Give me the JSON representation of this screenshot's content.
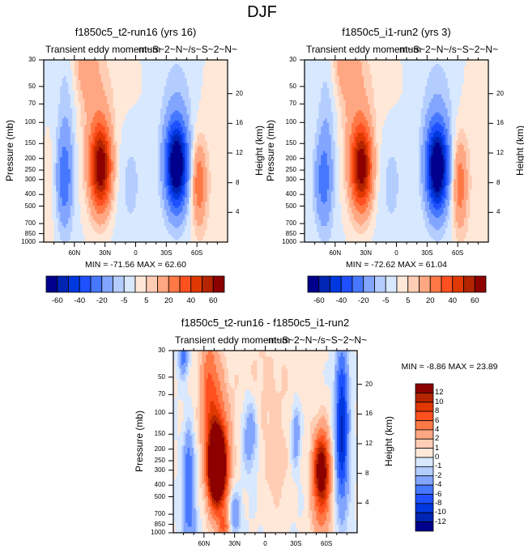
{
  "figure_title": "DJF",
  "colors": {
    "colormap": [
      "#00008c",
      "#0024b4",
      "#0038e0",
      "#1e50ff",
      "#4678ff",
      "#82a5ff",
      "#b4cdff",
      "#d7e8ff",
      "#ffe8d8",
      "#ffcdb4",
      "#ffa682",
      "#ff7846",
      "#ff5020",
      "#e03800",
      "#b42400",
      "#8c0000"
    ]
  },
  "chart_data": [
    {
      "type": "heatmap",
      "subtype": "filled-contour",
      "title": "f1850c5_t2-run16 (yrs 16)",
      "left_string": "Transient eddy momentum",
      "right_string": "m~S~2~N~/s~S~2~N~",
      "xlabel": "",
      "ylabel": "Pressure (mb)",
      "right_axis_label": "Height (km)",
      "x_ticks": [
        "60N",
        "30N",
        "0",
        "30S",
        "60S"
      ],
      "x_range": [
        90,
        -90
      ],
      "y_ticks": [
        "30",
        "50",
        "70",
        "100",
        "150",
        "200",
        "250",
        "300",
        "400",
        "500",
        "700",
        "850",
        "1000"
      ],
      "y_range_mb": [
        1000,
        30
      ],
      "right_ticks": [
        "20",
        "16",
        "12",
        "8",
        "4"
      ],
      "min": -71.56,
      "max": 62.6,
      "min_label": "MIN = -71.56  MAX =  62.60",
      "colorbar": {
        "orientation": "horizontal",
        "levels": [
          -70,
          -60,
          -50,
          -40,
          -30,
          -20,
          -10,
          -5,
          0,
          5,
          10,
          20,
          30,
          40,
          50,
          60,
          70
        ],
        "labels": [
          "-60",
          "-40",
          "-20",
          "-5",
          "5",
          "20",
          "40",
          "60"
        ]
      },
      "features": [
        {
          "name": "positive max NH subtropics",
          "lat": "~35N",
          "p_mb": 250,
          "value": 62.6
        },
        {
          "name": "negative min SH midlatitudes",
          "lat": "~40S",
          "p_mb": 250,
          "value": -71.56
        },
        {
          "name": "negative lobe NH high latitudes",
          "lat": "~70N",
          "p_mb": 300,
          "value": -20
        },
        {
          "name": "positive lobe SH high latitudes",
          "lat": "~60S",
          "p_mb": 300,
          "value": 20
        }
      ]
    },
    {
      "type": "heatmap",
      "subtype": "filled-contour",
      "title": "f1850c5_i1-run2 (yrs 3)",
      "left_string": "Transient eddy momentum",
      "right_string": "m~S~2~N~/s~S~2~N~",
      "xlabel": "",
      "ylabel": "Pressure (mb)",
      "right_axis_label": "Height (km)",
      "x_ticks": [
        "60N",
        "30N",
        "0",
        "30S",
        "60S"
      ],
      "x_range": [
        90,
        -90
      ],
      "y_ticks": [
        "30",
        "50",
        "70",
        "100",
        "150",
        "200",
        "250",
        "300",
        "400",
        "500",
        "700",
        "850",
        "1000"
      ],
      "y_range_mb": [
        1000,
        30
      ],
      "right_ticks": [
        "20",
        "16",
        "12",
        "8",
        "4"
      ],
      "min": -72.62,
      "max": 61.04,
      "min_label": "MIN = -72.62  MAX =  61.04",
      "colorbar": {
        "orientation": "horizontal",
        "levels": [
          -70,
          -60,
          -50,
          -40,
          -30,
          -20,
          -10,
          -5,
          0,
          5,
          10,
          20,
          30,
          40,
          50,
          60,
          70
        ],
        "labels": [
          "-60",
          "-40",
          "-20",
          "-5",
          "5",
          "20",
          "40",
          "60"
        ]
      },
      "features": [
        {
          "name": "positive max NH subtropics",
          "lat": "~35N",
          "p_mb": 250,
          "value": 61.04
        },
        {
          "name": "negative min SH midlatitudes",
          "lat": "~40S",
          "p_mb": 250,
          "value": -72.62
        },
        {
          "name": "negative lobe NH high latitudes",
          "lat": "~70N",
          "p_mb": 300,
          "value": -20
        },
        {
          "name": "positive lobe SH high latitudes",
          "lat": "~60S",
          "p_mb": 300,
          "value": 20
        }
      ]
    },
    {
      "type": "heatmap",
      "subtype": "filled-contour",
      "title": "f1850c5_t2-run16 - f1850c5_i1-run2",
      "left_string": "Transient eddy momentum",
      "right_string": "m~S~2~N~/s~S~2~N~",
      "xlabel": "",
      "ylabel": "Pressure (mb)",
      "right_axis_label": "Height (km)",
      "x_ticks": [
        "60N",
        "30N",
        "0",
        "30S",
        "60S"
      ],
      "x_range": [
        90,
        -90
      ],
      "y_ticks": [
        "30",
        "50",
        "70",
        "100",
        "150",
        "200",
        "250",
        "300",
        "400",
        "500",
        "700",
        "850",
        "1000"
      ],
      "y_range_mb": [
        1000,
        30
      ],
      "right_ticks": [
        "20",
        "16",
        "12",
        "8",
        "4"
      ],
      "min": -8.86,
      "max": 23.89,
      "min_label": "MIN =  -8.86  MAX =  23.89",
      "colorbar": {
        "orientation": "vertical",
        "levels": [
          -14,
          -12,
          -10,
          -8,
          -6,
          -4,
          -2,
          -1,
          0,
          1,
          2,
          4,
          6,
          8,
          10,
          12,
          14
        ],
        "labels": [
          "12",
          "10",
          "8",
          "6",
          "4",
          "2",
          "1",
          "0",
          "-1",
          "-2",
          "-4",
          "-6",
          "-8",
          "-10",
          "-12"
        ]
      },
      "features": [
        {
          "name": "positive max NH midlatitudes",
          "lat": "~45N",
          "p_mb": 300,
          "value": 23.89
        },
        {
          "name": "positive lobe SH midlatitudes",
          "lat": "~55S",
          "p_mb": 300,
          "value": 12
        },
        {
          "name": "negative lobe SH high latitudes",
          "lat": "~75S",
          "p_mb": 150,
          "value": -8
        },
        {
          "name": "negative lobe NH high latitudes",
          "lat": "~75N",
          "p_mb": 300,
          "value": -8
        }
      ]
    }
  ]
}
